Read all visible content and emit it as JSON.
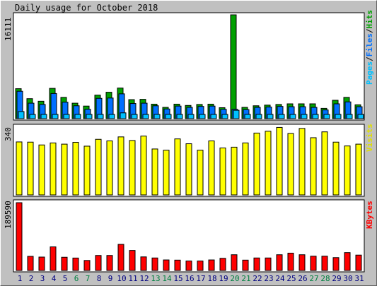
{
  "title": "Daily usage for October 2018",
  "colors": {
    "hits": "#00a000",
    "files": "#0070ff",
    "pages": "#00c0ff",
    "visits": "#ffff00",
    "kbytes": "#ff0000",
    "weekend": "#008040",
    "weekday": "#000080"
  },
  "chart_data": [
    {
      "type": "bar",
      "name": "hits-files-pages",
      "legend": {
        "pages": "Pages",
        "files": "Files",
        "hits": "Hits",
        "sep1": "/",
        "sep2": "/"
      },
      "ymax_label": "16111",
      "ylim": [
        0,
        16111
      ],
      "categories": [
        "1",
        "2",
        "3",
        "4",
        "5",
        "6",
        "7",
        "8",
        "9",
        "10",
        "11",
        "12",
        "13",
        "14",
        "15",
        "16",
        "17",
        "18",
        "19",
        "20",
        "21",
        "22",
        "23",
        "24",
        "25",
        "26",
        "27",
        "28",
        "29",
        "30",
        "31"
      ],
      "series": [
        {
          "name": "Hits",
          "values": [
            4650,
            3100,
            2700,
            4700,
            3300,
            2400,
            1950,
            3650,
            4100,
            4750,
            2950,
            3000,
            2250,
            1750,
            2250,
            2050,
            2200,
            2250,
            1700,
            16111,
            1750,
            2000,
            2100,
            2200,
            2300,
            2300,
            2300,
            1600,
            2850,
            3300,
            2150
          ]
        },
        {
          "name": "Files",
          "values": [
            4250,
            2400,
            2200,
            3900,
            2550,
            2000,
            1450,
            3150,
            3200,
            3850,
            2350,
            2400,
            2000,
            1500,
            1950,
            1750,
            1900,
            1950,
            1450,
            1450,
            1400,
            1750,
            1800,
            1900,
            1850,
            1850,
            1750,
            1350,
            2300,
            2600,
            1850
          ]
        },
        {
          "name": "Pages",
          "values": [
            1100,
            300,
            250,
            350,
            350,
            200,
            200,
            200,
            300,
            900,
            250,
            200,
            150,
            150,
            200,
            150,
            150,
            200,
            150,
            1300,
            200,
            150,
            150,
            150,
            150,
            150,
            150,
            150,
            200,
            250,
            200
          ]
        }
      ],
      "weekend_days": [
        "6",
        "7",
        "13",
        "14",
        "20",
        "21",
        "27",
        "28"
      ]
    },
    {
      "type": "bar",
      "name": "visits",
      "legend": "Visits",
      "ymax_label": "340",
      "ylim": [
        0,
        340
      ],
      "series": [
        {
          "name": "Visits",
          "values": [
            263,
            262,
            248,
            258,
            252,
            261,
            242,
            276,
            268,
            288,
            270,
            292,
            228,
            222,
            278,
            254,
            222,
            268,
            233,
            237,
            258,
            307,
            316,
            335,
            305,
            330,
            284,
            313,
            262,
            243,
            252
          ]
        }
      ]
    },
    {
      "type": "bar",
      "name": "kbytes",
      "legend": "KBytes",
      "ymax_label": "189590",
      "ylim": [
        0,
        189590
      ],
      "series": [
        {
          "name": "KBytes",
          "values": [
            189590,
            39500,
            37500,
            66000,
            37000,
            34800,
            28000,
            42000,
            42000,
            73000,
            56000,
            38000,
            35000,
            29500,
            29000,
            26500,
            26500,
            29500,
            34000,
            44000,
            29000,
            35000,
            35000,
            44000,
            48500,
            44000,
            40000,
            40000,
            36000,
            50000,
            43000
          ]
        }
      ]
    }
  ]
}
